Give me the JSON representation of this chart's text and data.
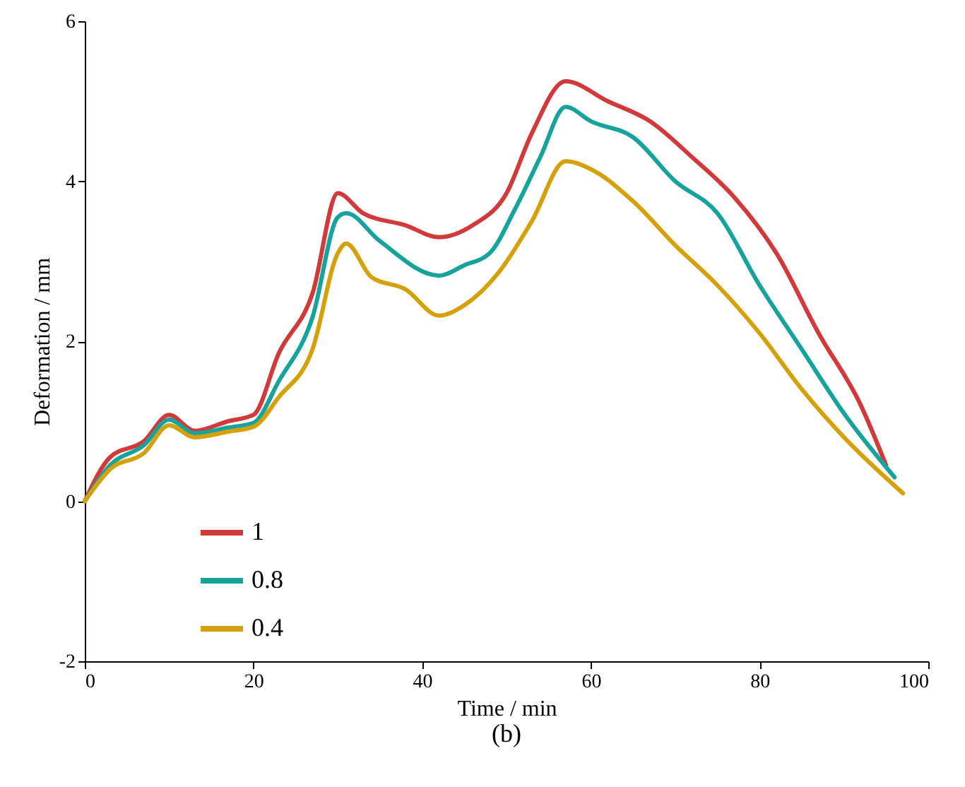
{
  "chart_data": {
    "type": "line",
    "xlabel": "Time / min",
    "ylabel": "Deformation / mm",
    "annotations": [
      "(b)"
    ],
    "xlim": [
      0,
      100
    ],
    "xticks": [
      0,
      20,
      40,
      60,
      80,
      100
    ],
    "ylim": [
      -2,
      6
    ],
    "yticks": [
      -2,
      0,
      2,
      4,
      6
    ],
    "grid": false,
    "legend": "bottom left",
    "marker": "none",
    "line_style": "solid",
    "series": [
      {
        "name": "1",
        "color": "#d03a3a",
        "x": [
          0,
          3,
          7,
          10,
          13,
          17,
          20,
          23,
          27,
          30,
          33,
          38,
          42,
          46,
          50,
          53,
          57,
          62,
          67,
          72,
          77,
          82,
          87,
          92,
          95
        ],
        "values": [
          0,
          0.55,
          0.75,
          1.08,
          0.88,
          1.0,
          1.08,
          1.85,
          2.6,
          3.85,
          3.6,
          3.45,
          3.3,
          3.45,
          3.85,
          4.6,
          5.25,
          5.0,
          4.75,
          4.3,
          3.8,
          3.1,
          2.1,
          1.2,
          0.45
        ]
      },
      {
        "name": "0.8",
        "color": "#17a39b",
        "x": [
          0,
          3,
          7,
          10,
          13,
          17,
          20,
          23,
          27,
          30,
          31,
          35,
          42,
          45,
          48,
          51,
          54,
          57,
          60,
          65,
          70,
          75,
          80,
          85,
          90,
          96
        ],
        "values": [
          0,
          0.45,
          0.7,
          1.02,
          0.85,
          0.92,
          0.98,
          1.5,
          2.3,
          3.55,
          3.6,
          3.25,
          2.82,
          2.95,
          3.1,
          3.65,
          4.3,
          4.93,
          4.75,
          4.55,
          4.0,
          3.6,
          2.7,
          1.9,
          1.1,
          0.3
        ]
      },
      {
        "name": "0.4",
        "color": "#d4a10a",
        "x": [
          0,
          3,
          7,
          10,
          13,
          17,
          20,
          23,
          27,
          30,
          31,
          34,
          38,
          42,
          45,
          49,
          53,
          57,
          60,
          65,
          70,
          75,
          80,
          85,
          90,
          97
        ],
        "values": [
          0,
          0.4,
          0.6,
          0.95,
          0.8,
          0.87,
          0.93,
          1.3,
          1.9,
          3.1,
          3.22,
          2.8,
          2.65,
          2.32,
          2.45,
          2.85,
          3.5,
          4.25,
          4.15,
          3.75,
          3.2,
          2.7,
          2.1,
          1.4,
          0.8,
          0.1
        ]
      }
    ]
  }
}
